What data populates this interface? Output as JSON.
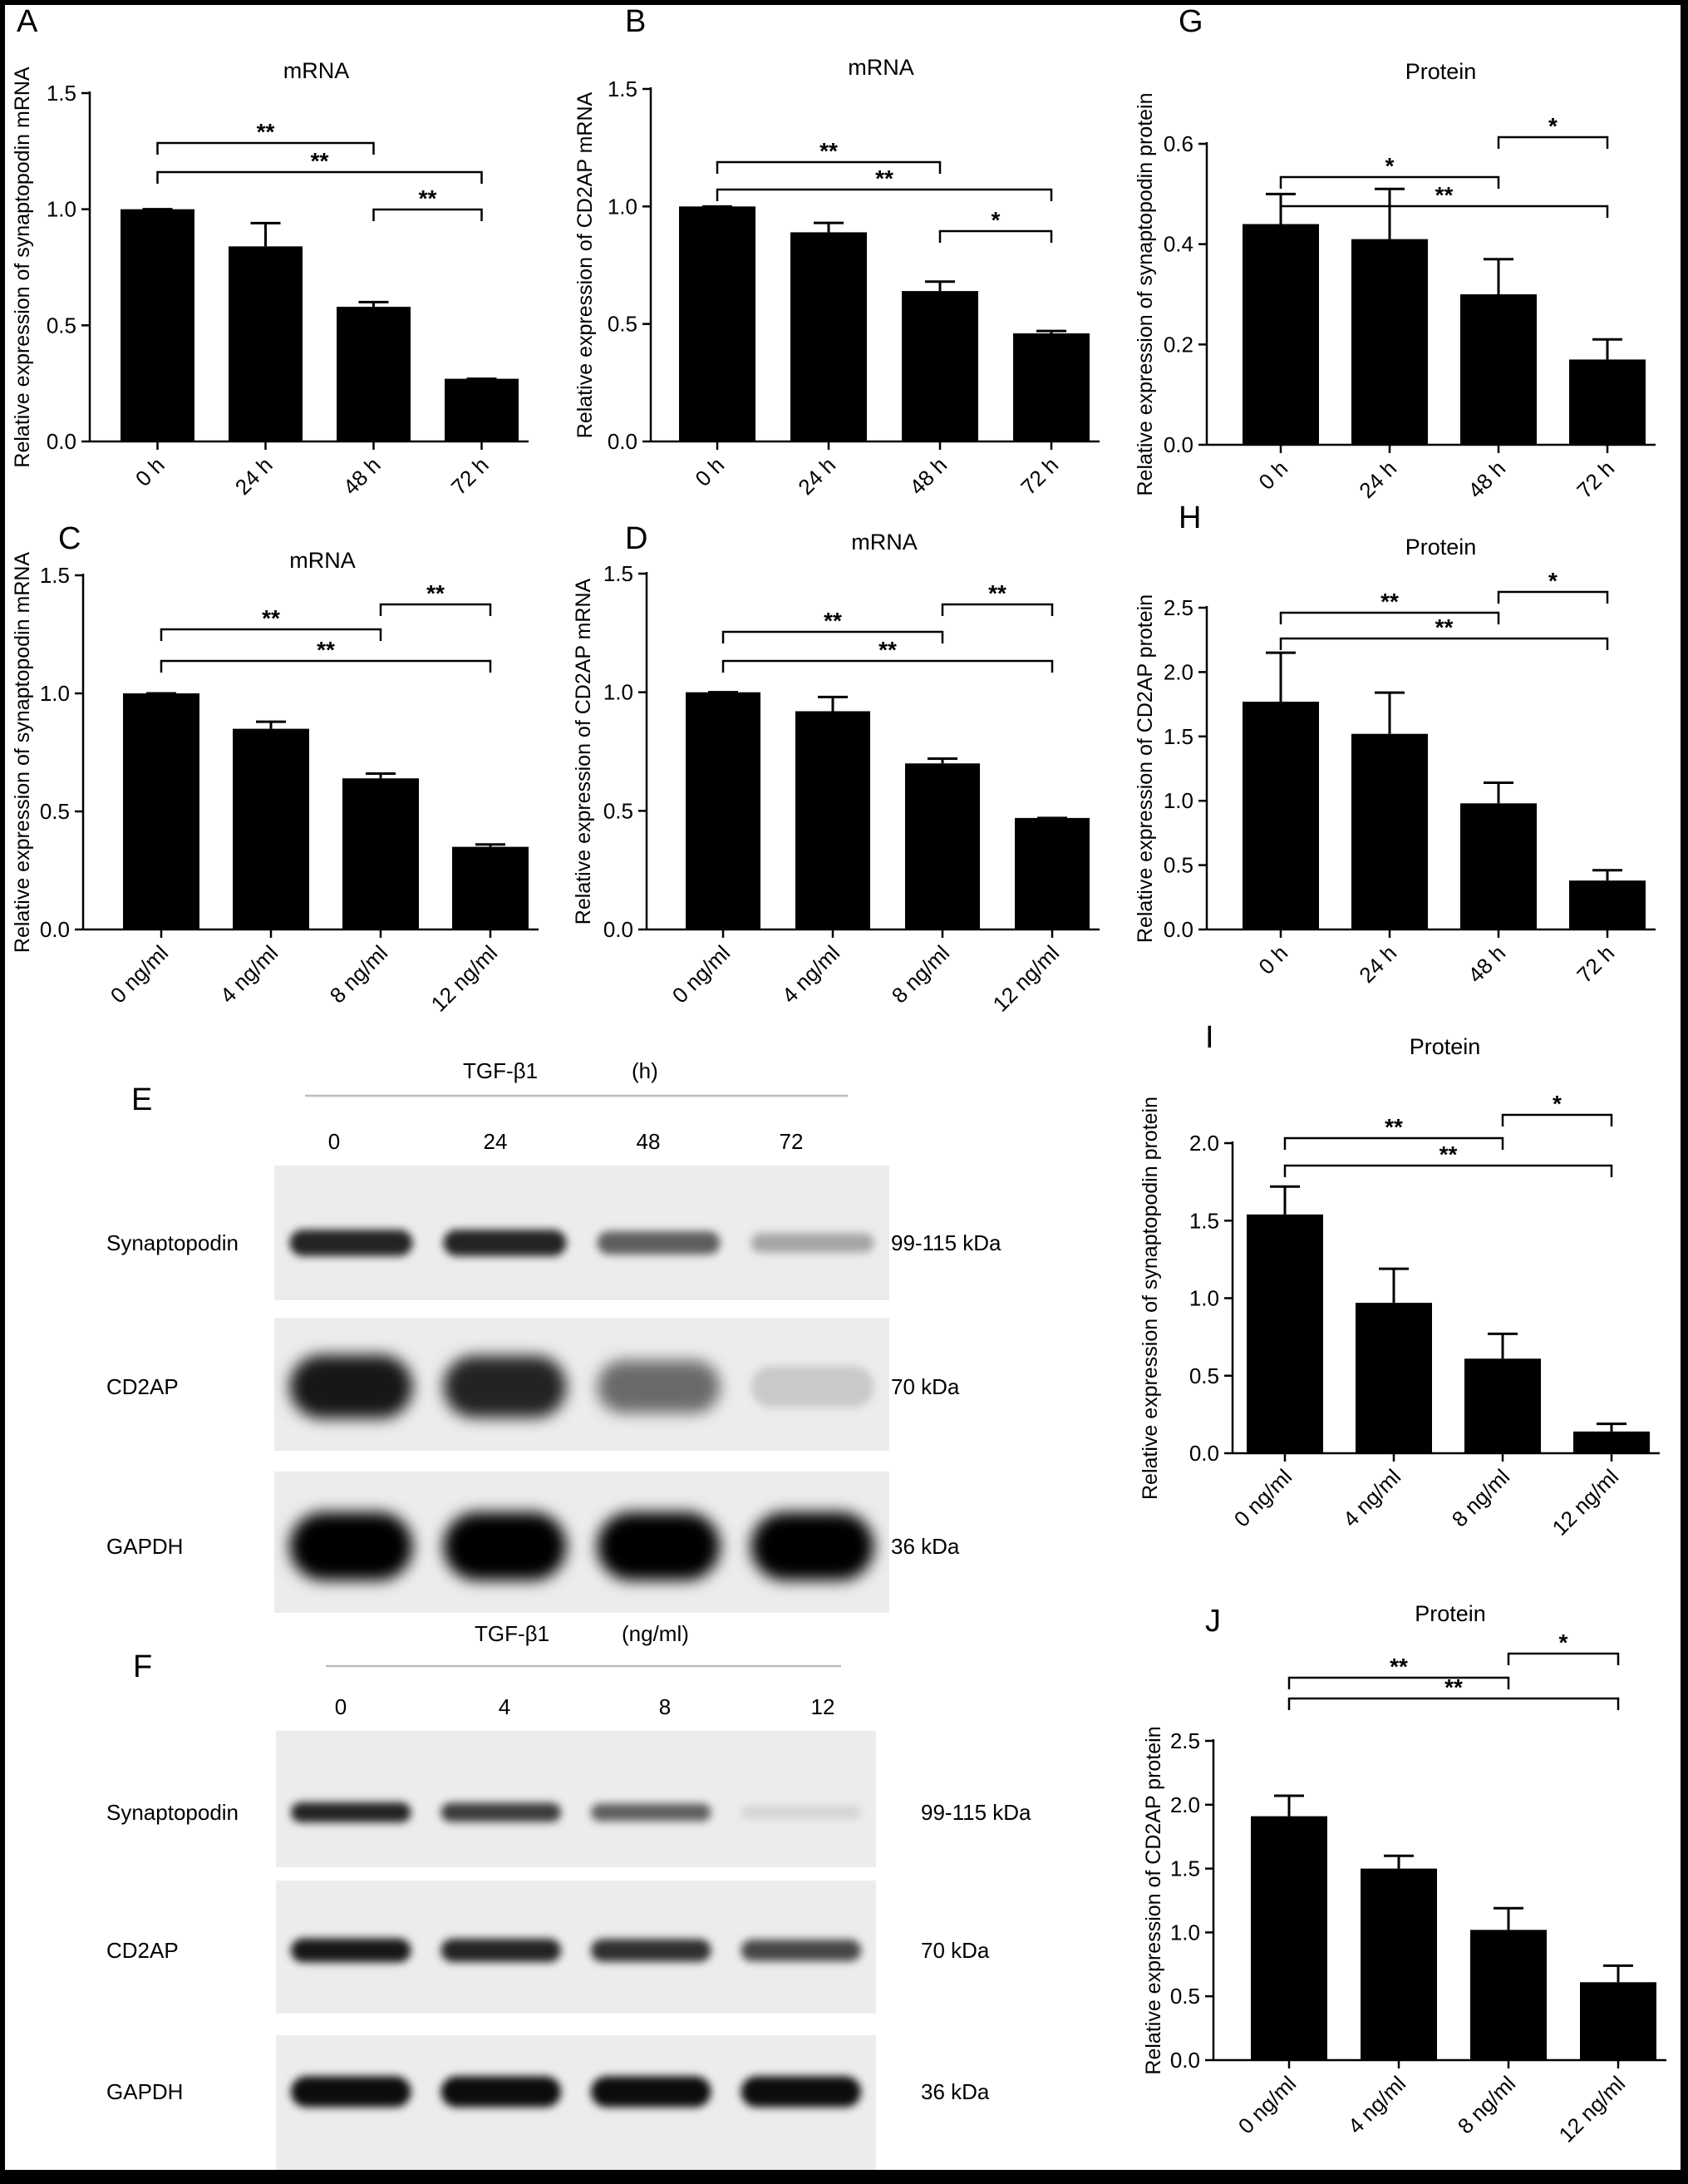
{
  "colors": {
    "background": "#ffffff",
    "frame": "#000000",
    "bars": "#000000",
    "blot_line": "#bbbbbb"
  },
  "chart_data": [
    {
      "id": "A",
      "type": "bar",
      "title": "mRNA",
      "ylabel": "Relative expression of synaptopodin mRNA",
      "categories": [
        "0 h",
        "24 h",
        "48 h",
        "72 h"
      ],
      "values": [
        1.0,
        0.84,
        0.58,
        0.27
      ],
      "errors": [
        0.0,
        0.1,
        0.02,
        0.0
      ],
      "ylim": [
        0,
        1.5
      ],
      "yticks": [
        0.0,
        0.5,
        1.0,
        1.5
      ],
      "tick_labels": [
        "0.0",
        "0.5",
        "1.0",
        "1.5"
      ],
      "significance": [
        {
          "from": 0,
          "to": 2,
          "label": "**"
        },
        {
          "from": 0,
          "to": 3,
          "label": "**"
        },
        {
          "from": 2,
          "to": 3,
          "label": "**"
        }
      ]
    },
    {
      "id": "B",
      "type": "bar",
      "title": "mRNA",
      "ylabel": "Relative expression of CD2AP mRNA",
      "categories": [
        "0 h",
        "24 h",
        "48 h",
        "72 h"
      ],
      "values": [
        1.0,
        0.89,
        0.64,
        0.46
      ],
      "errors": [
        0.0,
        0.04,
        0.04,
        0.01
      ],
      "ylim": [
        0,
        1.5
      ],
      "yticks": [
        0.0,
        0.5,
        1.0,
        1.5
      ],
      "tick_labels": [
        "0.0",
        "0.5",
        "1.0",
        "1.5"
      ],
      "significance": [
        {
          "from": 0,
          "to": 2,
          "label": "**"
        },
        {
          "from": 0,
          "to": 3,
          "label": "**"
        },
        {
          "from": 2,
          "to": 3,
          "label": "*"
        }
      ]
    },
    {
      "id": "C",
      "type": "bar",
      "title": "mRNA",
      "ylabel": "Relative expression of synaptopodin mRNA",
      "categories": [
        "0 ng/ml",
        "4 ng/ml",
        "8 ng/ml",
        "12 ng/ml"
      ],
      "values": [
        1.0,
        0.85,
        0.64,
        0.35
      ],
      "errors": [
        0.0,
        0.03,
        0.02,
        0.01
      ],
      "ylim": [
        0,
        1.5
      ],
      "yticks": [
        0.0,
        0.5,
        1.0,
        1.5
      ],
      "tick_labels": [
        "0.0",
        "0.5",
        "1.0",
        "1.5"
      ],
      "significance": [
        {
          "from": 0,
          "to": 2,
          "label": "**"
        },
        {
          "from": 0,
          "to": 3,
          "label": "**"
        },
        {
          "from": 2,
          "to": 3,
          "label": "**"
        }
      ]
    },
    {
      "id": "D",
      "type": "bar",
      "title": "mRNA",
      "ylabel": "Relative expression of CD2AP mRNA",
      "categories": [
        "0 ng/ml",
        "4 ng/ml",
        "8 ng/ml",
        "12 ng/ml"
      ],
      "values": [
        1.0,
        0.92,
        0.7,
        0.47
      ],
      "errors": [
        0.0,
        0.06,
        0.02,
        0.0
      ],
      "ylim": [
        0,
        1.5
      ],
      "yticks": [
        0.0,
        0.5,
        1.0,
        1.5
      ],
      "tick_labels": [
        "0.0",
        "0.5",
        "1.0",
        "1.5"
      ],
      "significance": [
        {
          "from": 0,
          "to": 2,
          "label": "**"
        },
        {
          "from": 0,
          "to": 3,
          "label": "**"
        },
        {
          "from": 2,
          "to": 3,
          "label": "**"
        }
      ]
    },
    {
      "id": "G",
      "type": "bar",
      "title": "Protein",
      "ylabel": "Relative expression of synaptopodin protein",
      "categories": [
        "0 h",
        "24 h",
        "48 h",
        "72 h"
      ],
      "values": [
        0.44,
        0.41,
        0.3,
        0.17
      ],
      "errors": [
        0.06,
        0.1,
        0.07,
        0.04
      ],
      "ylim": [
        0,
        0.6
      ],
      "yticks": [
        0.0,
        0.2,
        0.4,
        0.6
      ],
      "tick_labels": [
        "0.0",
        "0.2",
        "0.4",
        "0.6"
      ],
      "significance": [
        {
          "from": 0,
          "to": 2,
          "label": "*"
        },
        {
          "from": 0,
          "to": 3,
          "label": "**"
        },
        {
          "from": 2,
          "to": 3,
          "label": "*"
        }
      ]
    },
    {
      "id": "H",
      "type": "bar",
      "title": "Protein",
      "ylabel": "Relative expression of CD2AP protein",
      "categories": [
        "0 h",
        "24 h",
        "48 h",
        "72 h"
      ],
      "values": [
        1.77,
        1.52,
        0.98,
        0.38
      ],
      "errors": [
        0.38,
        0.32,
        0.16,
        0.08
      ],
      "ylim": [
        0,
        2.5
      ],
      "yticks": [
        0.0,
        0.5,
        1.0,
        1.5,
        2.0,
        2.5
      ],
      "tick_labels": [
        "0.0",
        "0.5",
        "1.0",
        "1.5",
        "2.0",
        "2.5"
      ],
      "significance": [
        {
          "from": 0,
          "to": 2,
          "label": "**"
        },
        {
          "from": 0,
          "to": 3,
          "label": "**"
        },
        {
          "from": 2,
          "to": 3,
          "label": "*"
        }
      ]
    },
    {
      "id": "I",
      "type": "bar",
      "title": "Protein",
      "ylabel": "Relative expression of synaptopodin protein",
      "categories": [
        "0 ng/ml",
        "4 ng/ml",
        "8 ng/ml",
        "12 ng/ml"
      ],
      "values": [
        1.54,
        0.97,
        0.61,
        0.14
      ],
      "errors": [
        0.18,
        0.22,
        0.16,
        0.05
      ],
      "ylim": [
        0,
        2.0
      ],
      "yticks": [
        0.0,
        0.5,
        1.0,
        1.5,
        2.0
      ],
      "tick_labels": [
        "0.0",
        "0.5",
        "1.0",
        "1.5",
        "2.0"
      ],
      "significance": [
        {
          "from": 0,
          "to": 2,
          "label": "**"
        },
        {
          "from": 0,
          "to": 3,
          "label": "**"
        },
        {
          "from": 2,
          "to": 3,
          "label": "*"
        }
      ]
    },
    {
      "id": "J",
      "type": "bar",
      "title": "Protein",
      "ylabel": "Relative expression of CD2AP protein",
      "categories": [
        "0 ng/ml",
        "4 ng/ml",
        "8 ng/ml",
        "12 ng/ml"
      ],
      "values": [
        1.91,
        1.5,
        1.02,
        0.61
      ],
      "errors": [
        0.16,
        0.1,
        0.17,
        0.13
      ],
      "ylim": [
        0,
        2.5
      ],
      "yticks": [
        0.0,
        0.5,
        1.0,
        1.5,
        2.0,
        2.5
      ],
      "tick_labels": [
        "0.0",
        "0.5",
        "1.0",
        "1.5",
        "2.0",
        "2.5"
      ],
      "significance": [
        {
          "from": 0,
          "to": 2,
          "label": "**"
        },
        {
          "from": 0,
          "to": 3,
          "label": "**"
        },
        {
          "from": 2,
          "to": 3,
          "label": "*"
        }
      ]
    }
  ],
  "blots": [
    {
      "id": "E",
      "treatment": "TGF-β1",
      "unit": "(h)",
      "lanes": [
        "0",
        "24",
        "48",
        "72"
      ],
      "rows": [
        {
          "label": "Synaptopodin",
          "size": "99-115 kDa",
          "intensities": [
            0.85,
            0.85,
            0.6,
            0.3
          ]
        },
        {
          "label": "CD2AP",
          "size": "70 kDa",
          "intensities": [
            0.9,
            0.85,
            0.55,
            0.15
          ]
        },
        {
          "label": "GAPDH",
          "size": "36 kDa",
          "intensities": [
            1.0,
            1.0,
            1.0,
            1.0
          ]
        }
      ]
    },
    {
      "id": "F",
      "treatment": "TGF-β1",
      "unit": "(ng/ml)",
      "lanes": [
        "0",
        "4",
        "8",
        "12"
      ],
      "rows": [
        {
          "label": "Synaptopodin",
          "size": "99-115 kDa",
          "intensities": [
            0.85,
            0.75,
            0.6,
            0.1
          ]
        },
        {
          "label": "CD2AP",
          "size": "70 kDa",
          "intensities": [
            0.9,
            0.85,
            0.8,
            0.7
          ]
        },
        {
          "label": "GAPDH",
          "size": "36 kDa",
          "intensities": [
            0.95,
            0.95,
            0.95,
            0.95
          ]
        }
      ]
    }
  ]
}
